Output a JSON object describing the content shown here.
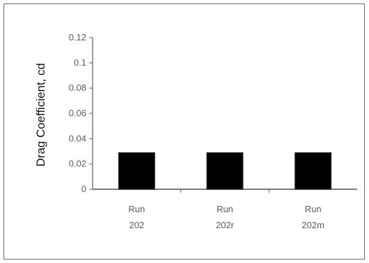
{
  "chart_data": {
    "type": "bar",
    "title": "",
    "xlabel": "",
    "ylabel": "Drag Coefficient, cd",
    "categories": [
      [
        "Run",
        "202"
      ],
      [
        "Run",
        "202r"
      ],
      [
        "Run",
        "202m"
      ]
    ],
    "values": [
      0.029,
      0.029,
      0.029
    ],
    "ylim": [
      0,
      0.12
    ],
    "yticks": [
      "0",
      "0.02",
      "0.04",
      "0.06",
      "0.08",
      "0.1",
      "0.12"
    ],
    "ytick_values": [
      0,
      0.02,
      0.04,
      0.06,
      0.08,
      0.1,
      0.12
    ],
    "grid": false,
    "legend": "none",
    "bar_color": "#000000"
  }
}
